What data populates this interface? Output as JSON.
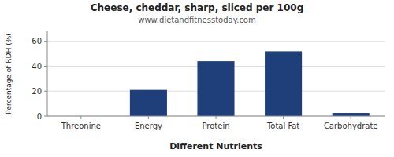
{
  "chart_data": {
    "type": "bar",
    "title": "Cheese, cheddar, sharp, sliced per 100g",
    "subtitle": "www.dietandfitnesstoday.com",
    "xlabel": "Different Nutrients",
    "ylabel": "Percentage of RDH (%)",
    "categories": [
      "Threonine",
      "Energy",
      "Protein",
      "Total Fat",
      "Carbohydrate"
    ],
    "values": [
      0,
      21,
      44,
      52,
      2.5
    ],
    "color": "#1e3f7a",
    "ylim": [
      0,
      68
    ],
    "yticks": [
      0,
      20,
      40,
      60
    ],
    "grid": true
  }
}
